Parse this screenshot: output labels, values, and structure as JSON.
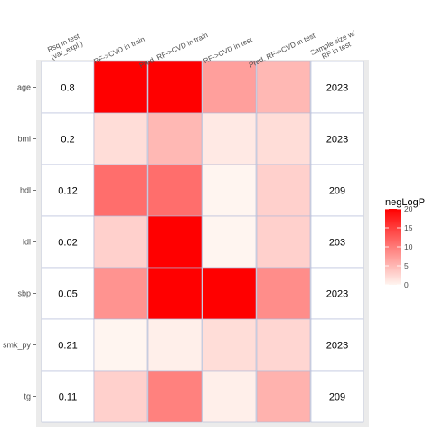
{
  "chart_data": {
    "type": "heatmap",
    "rows": [
      "age",
      "bmi",
      "hdl",
      "ldl",
      "sbp",
      "smk_py",
      "tg"
    ],
    "columns": [
      "Rsq in test\n(var_expl.)",
      "RF->CVD in train",
      "Pred. RF->CVD in train",
      "RF->CVD in test",
      "Pred. RF->CVD in test",
      "Sample size w/\nRF in test"
    ],
    "text_column_indices": [
      0,
      5
    ],
    "rsq_values": [
      "0.8",
      "0.2",
      "0.12",
      "0.02",
      "0.05",
      "0.21",
      "0.11"
    ],
    "sample_sizes": [
      "2023",
      "2023",
      "209",
      "203",
      "2023",
      "2023",
      "209"
    ],
    "neglogp": [
      [
        20,
        20,
        7,
        5
      ],
      [
        2,
        5,
        1,
        2
      ],
      [
        11,
        11,
        0,
        3
      ],
      [
        3,
        20,
        0,
        3
      ],
      [
        8,
        20,
        20,
        8.5
      ],
      [
        0,
        0.5,
        2,
        2.5
      ],
      [
        3,
        9.5,
        0.5,
        5.5
      ]
    ],
    "legend": {
      "title": "negLogP",
      "min": 0,
      "max": 20,
      "ticks": [
        0,
        5,
        10,
        15,
        20
      ],
      "low_color": "#fff5f0",
      "high_color": "#ff0000"
    },
    "colors": {
      "panel_background": "#ebebeb",
      "text_cell_fill": "#ffffff",
      "cell_border": "#b0b8d8"
    }
  }
}
